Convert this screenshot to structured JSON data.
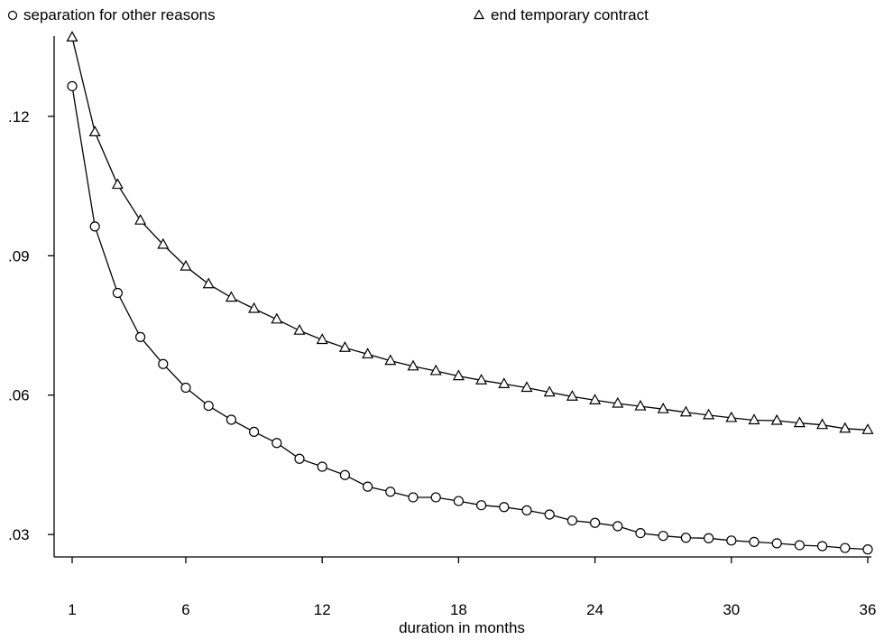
{
  "chart_data": {
    "type": "line",
    "xlabel": "duration in months",
    "ylabel": "",
    "xlim": [
      0,
      36
    ],
    "ylim": [
      0.022,
      0.138
    ],
    "xticks": [
      1,
      6,
      12,
      18,
      24,
      30,
      36
    ],
    "xtick_labels": [
      "1",
      "6",
      "12",
      "18",
      "24",
      "30",
      "36"
    ],
    "yticks": [
      0.03,
      0.06,
      0.09,
      0.12
    ],
    "ytick_labels": [
      ".03",
      ".06",
      ".09",
      ".12"
    ],
    "grid": false,
    "legend_position": "top",
    "x": [
      1,
      2,
      3,
      4,
      5,
      6,
      7,
      8,
      9,
      10,
      11,
      12,
      13,
      14,
      15,
      16,
      17,
      18,
      19,
      20,
      21,
      22,
      23,
      24,
      25,
      26,
      27,
      28,
      29,
      30,
      31,
      32,
      33,
      34,
      35,
      36
    ],
    "series": [
      {
        "name": "separation for other reasons",
        "marker": "circle",
        "values": [
          0.1265,
          0.0963,
          0.082,
          0.0725,
          0.0667,
          0.0616,
          0.0577,
          0.0547,
          0.0521,
          0.0497,
          0.0463,
          0.0446,
          0.0428,
          0.0403,
          0.0392,
          0.038,
          0.038,
          0.0372,
          0.0363,
          0.0359,
          0.0352,
          0.0343,
          0.033,
          0.0325,
          0.0318,
          0.0303,
          0.0297,
          0.0293,
          0.0292,
          0.0287,
          0.0284,
          0.0281,
          0.0277,
          0.0275,
          0.0271,
          0.0268
        ]
      },
      {
        "name": "end temporary contract",
        "marker": "triangle",
        "values": [
          0.137,
          0.1166,
          0.1053,
          0.0976,
          0.0924,
          0.0877,
          0.0839,
          0.081,
          0.0786,
          0.0763,
          0.0739,
          0.0719,
          0.0702,
          0.0688,
          0.0674,
          0.0662,
          0.0652,
          0.0641,
          0.0632,
          0.0624,
          0.0616,
          0.0606,
          0.0597,
          0.0589,
          0.0582,
          0.0576,
          0.057,
          0.0563,
          0.0557,
          0.0551,
          0.0546,
          0.0545,
          0.054,
          0.0536,
          0.0528,
          0.0525
        ]
      }
    ]
  }
}
